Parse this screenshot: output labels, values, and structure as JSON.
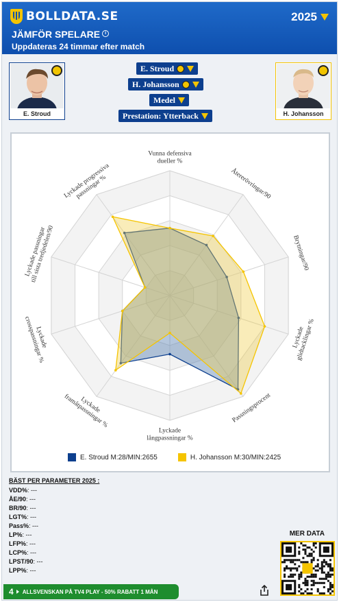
{
  "header": {
    "logo_text": "BOLLDATA.SE",
    "year": "2025",
    "title": "JÄMFÖR SPELARE",
    "info_symbol": "i",
    "subtitle": "Uppdateras 24 timmar efter match"
  },
  "players": [
    {
      "name": "E. Stroud",
      "color": "#0d3f8e"
    },
    {
      "name": "H. Johansson",
      "color": "#f5c400"
    }
  ],
  "selectors": {
    "player1": "E. Stroud",
    "player2": "H. Johansson",
    "metric": "Medel",
    "performance": "Prestation: Ytterback"
  },
  "chart_data": {
    "type": "radar",
    "axes": [
      "Vunna defensiva dueller %",
      "Återerövringar/90",
      "Brytningar/90",
      "Lyckade glidtacklingar %",
      "Passningsprocent",
      "Lyckade långpassningar %",
      "Lyckade framåtpassningar %",
      "Lyckade crosspassningar %",
      "Lyckade passningar till sista tredjedelen/90",
      "Lyckade progressiva passningar %"
    ],
    "axis_label_lines": [
      [
        "Vunna defensiva",
        "dueller %"
      ],
      [
        "Återerövringar/90"
      ],
      [
        "Brytningar/90"
      ],
      [
        "Lyckade",
        "glidtacklingar %"
      ],
      [
        "Passningsprocent"
      ],
      [
        "Lyckade",
        "långpassningar %"
      ],
      [
        "Lyckade",
        "framåtpassningar %"
      ],
      [
        "Lyckade",
        "crosspassningar %"
      ],
      [
        "Lyckade passningar",
        "till sista tredjedelen/90"
      ],
      [
        "Lyckade progressiva",
        "passningar %"
      ]
    ],
    "rlim": [
      0,
      100
    ],
    "rings": 5,
    "series": [
      {
        "name": "E. Stroud",
        "legend": "E. Stroud M:28/MIN:2655",
        "color": "#0d3f8e",
        "fill": "rgba(90,130,180,0.45)",
        "values": [
          54,
          50,
          48,
          58,
          93,
          47,
          67,
          40,
          21,
          62
        ]
      },
      {
        "name": "H. Johansson",
        "legend": "H. Johansson M:30/MIN:2425",
        "color": "#f5c400",
        "fill": "rgba(240,205,70,0.38)",
        "values": [
          54,
          59,
          62,
          80,
          97,
          30,
          74,
          40,
          21,
          78
        ]
      }
    ]
  },
  "stats": {
    "heading": "BÄST PER PARAMETER 2025 :",
    "rows": [
      {
        "label": "VDD%",
        "value": ": ---"
      },
      {
        "label": "ÅE/90",
        "value": ": ---"
      },
      {
        "label": "BR/90",
        "value": ": ---"
      },
      {
        "label": "LGT%",
        "value": ": ---"
      },
      {
        "label": "Pass%",
        "value": ": ---"
      },
      {
        "label": "LP%",
        "value": ": ---"
      },
      {
        "label": "LFP%",
        "value": ": ---"
      },
      {
        "label": "LCP%",
        "value": ": ---"
      },
      {
        "label": "LPST/90",
        "value": ": ---"
      },
      {
        "label": "LPP%",
        "value": ": ---"
      }
    ]
  },
  "footer": {
    "mer_data": "MER DATA",
    "promo_number": "4",
    "promo_text": "ALLSVENSKAN PÅ TV4 PLAY - 50% RABATT 1 MÅN"
  }
}
